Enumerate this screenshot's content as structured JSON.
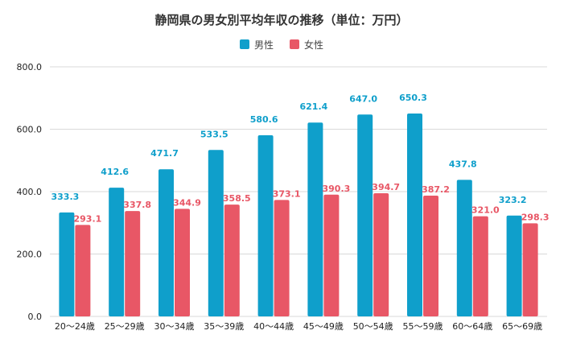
{
  "chart_data": {
    "type": "bar",
    "title": "静岡県の男女別平均年収の推移（単位：万円）",
    "xlabel": "",
    "ylabel": "",
    "ylim": [
      0,
      800
    ],
    "yticks": [
      "0.0",
      "200.0",
      "400.0",
      "600.0",
      "800.0"
    ],
    "categories": [
      "20～24歳",
      "25～29歳",
      "30～34歳",
      "35～39歳",
      "40～44歳",
      "45～49歳",
      "50～54歳",
      "55～59歳",
      "60～64歳",
      "65～69歳"
    ],
    "series": [
      {
        "name": "男性",
        "color": "#0f9fcb",
        "values": [
          333.3,
          412.6,
          471.7,
          533.5,
          580.6,
          621.4,
          647.0,
          650.3,
          437.8,
          323.2
        ],
        "labels": [
          "333.3",
          "412.6",
          "471.7",
          "533.5",
          "580.6",
          "621.4",
          "647.0",
          "650.3",
          "437.8",
          "323.2"
        ]
      },
      {
        "name": "女性",
        "color": "#e85766",
        "values": [
          293.1,
          337.8,
          344.9,
          358.5,
          373.1,
          390.3,
          394.7,
          387.2,
          321.0,
          298.3
        ],
        "labels": [
          "293.1",
          "337.8",
          "344.9",
          "358.5",
          "373.1",
          "390.3",
          "394.7",
          "387.2",
          "321.0",
          "298.3"
        ]
      }
    ],
    "legend": "top-center",
    "grid": true
  }
}
